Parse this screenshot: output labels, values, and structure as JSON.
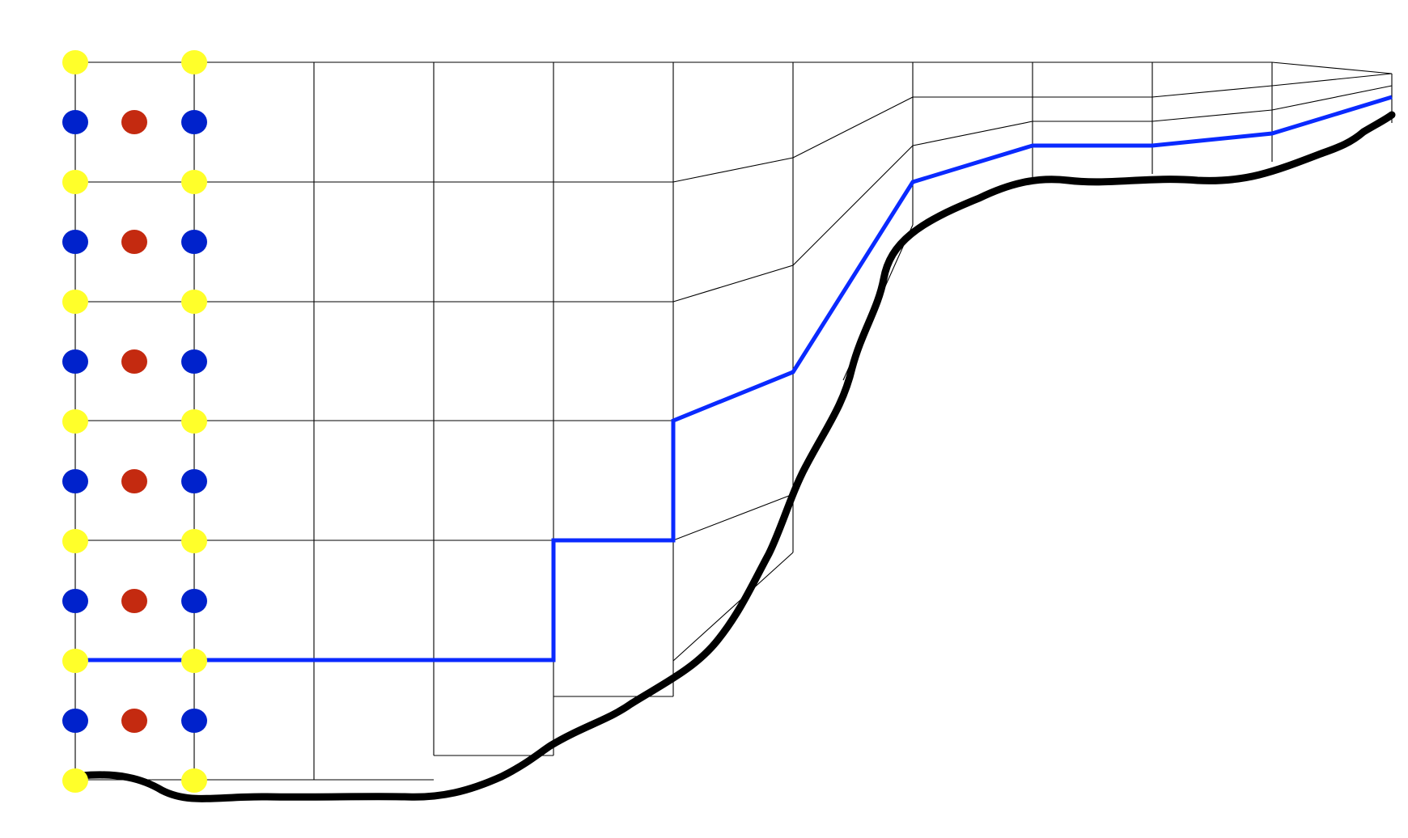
{
  "diagram": {
    "type": "staggered-grid-mesh",
    "colors": {
      "background": "#ffffff",
      "grid_line": "#000000",
      "node_corner": "#ffff2a",
      "node_edge": "#0022cc",
      "node_center": "#c42a10",
      "interface_line": "#0a2aff",
      "boundary_curve": "#000000"
    },
    "grid": {
      "columns": 11,
      "rows": 6
    },
    "node_markers": {
      "corner_count": 14,
      "edge_count": 12,
      "center_count": 6
    },
    "interface_line": {
      "label": ""
    },
    "boundary_curve": {
      "label": ""
    }
  }
}
